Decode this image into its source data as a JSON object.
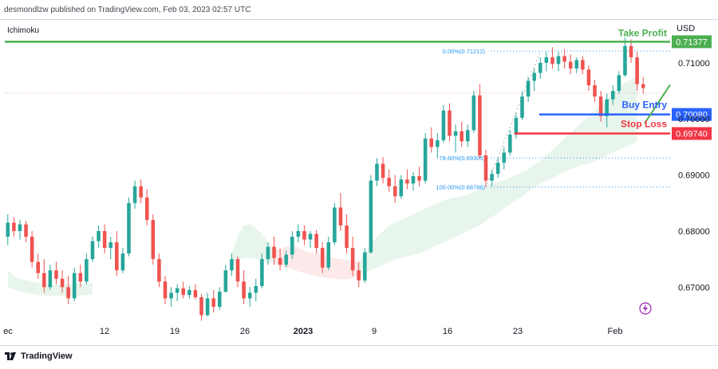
{
  "publisher": "desmondlzw published on TradingView.com, Feb 03, 2023 02:57 UTC",
  "indicator": "Ichimoku",
  "currency": "USD",
  "footer": "TradingView",
  "colors": {
    "up": "#26a69a",
    "down": "#ef5350",
    "take_profit": "#4caf50",
    "buy_entry": "#2962ff",
    "stop_loss": "#f23645",
    "fib": "#2196f3",
    "cloud_green": "#e6f4ea",
    "cloud_red": "#fde7e7",
    "signal": "#9c27b0"
  },
  "annotations": {
    "take_profit": "Take Profit",
    "buy_entry": "Buy Entry",
    "stop_loss": "Stop Loss"
  },
  "price_tags": {
    "take_profit": "0.71377",
    "buy_entry": "0.70080",
    "stop_loss": "0.69740"
  },
  "chart_data": {
    "type": "candlestick",
    "x_ticks": [
      "ec",
      "12",
      "19",
      "26",
      "2023",
      "9",
      "16",
      "23",
      "Feb"
    ],
    "y_ticks": [
      "0.71000",
      "0.70000",
      "0.69000",
      "0.68000",
      "0.67000"
    ],
    "ylim": [
      0.6645,
      0.7178
    ],
    "levels": {
      "take_profit": 0.71377,
      "buy_entry": 0.7008,
      "stop_loss": 0.6974
    },
    "fibonacci": [
      {
        "label": "0.00%(0.71212)",
        "value": 0.71212
      },
      {
        "label": "78.60%(0.69305)",
        "value": 0.69305
      },
      {
        "label": "100.00%(0.68786)",
        "value": 0.68786
      }
    ],
    "candles": [
      [
        0.679,
        0.683,
        0.6775,
        0.6815
      ],
      [
        0.6815,
        0.6825,
        0.679,
        0.68
      ],
      [
        0.68,
        0.682,
        0.6785,
        0.6812
      ],
      [
        0.6812,
        0.6818,
        0.678,
        0.679
      ],
      [
        0.679,
        0.68,
        0.6735,
        0.6745
      ],
      [
        0.6745,
        0.676,
        0.6715,
        0.6725
      ],
      [
        0.6725,
        0.675,
        0.669,
        0.67
      ],
      [
        0.67,
        0.674,
        0.6695,
        0.673
      ],
      [
        0.673,
        0.6745,
        0.6705,
        0.6715
      ],
      [
        0.6715,
        0.673,
        0.669,
        0.67
      ],
      [
        0.67,
        0.672,
        0.667,
        0.668
      ],
      [
        0.668,
        0.6735,
        0.6675,
        0.6725
      ],
      [
        0.6725,
        0.674,
        0.67,
        0.671
      ],
      [
        0.671,
        0.676,
        0.6705,
        0.675
      ],
      [
        0.675,
        0.679,
        0.6745,
        0.6782
      ],
      [
        0.6782,
        0.681,
        0.677,
        0.68
      ],
      [
        0.68,
        0.6812,
        0.676,
        0.677
      ],
      [
        0.677,
        0.679,
        0.675,
        0.678
      ],
      [
        0.678,
        0.68,
        0.672,
        0.673
      ],
      [
        0.673,
        0.677,
        0.6725,
        0.676
      ],
      [
        0.676,
        0.686,
        0.6755,
        0.685
      ],
      [
        0.685,
        0.689,
        0.684,
        0.688
      ],
      [
        0.688,
        0.6892,
        0.685,
        0.686
      ],
      [
        0.686,
        0.6875,
        0.681,
        0.682
      ],
      [
        0.682,
        0.683,
        0.674,
        0.675
      ],
      [
        0.675,
        0.676,
        0.67,
        0.671
      ],
      [
        0.671,
        0.672,
        0.667,
        0.668
      ],
      [
        0.668,
        0.67,
        0.6665,
        0.669
      ],
      [
        0.669,
        0.6705,
        0.6675,
        0.6698
      ],
      [
        0.6698,
        0.671,
        0.668,
        0.6686
      ],
      [
        0.6686,
        0.6702,
        0.668,
        0.6695
      ],
      [
        0.6695,
        0.6705,
        0.6678,
        0.6682
      ],
      [
        0.6682,
        0.6688,
        0.664,
        0.665
      ],
      [
        0.665,
        0.669,
        0.6648,
        0.668
      ],
      [
        0.668,
        0.6695,
        0.6655,
        0.6665
      ],
      [
        0.6665,
        0.67,
        0.666,
        0.6692
      ],
      [
        0.6692,
        0.674,
        0.669,
        0.673
      ],
      [
        0.673,
        0.676,
        0.672,
        0.675
      ],
      [
        0.675,
        0.6755,
        0.67,
        0.671
      ],
      [
        0.671,
        0.673,
        0.667,
        0.668
      ],
      [
        0.668,
        0.67,
        0.6665,
        0.669
      ],
      [
        0.669,
        0.6715,
        0.6675,
        0.6702
      ],
      [
        0.6702,
        0.676,
        0.6698,
        0.675
      ],
      [
        0.675,
        0.678,
        0.674,
        0.6772
      ],
      [
        0.6772,
        0.679,
        0.674,
        0.6752
      ],
      [
        0.6752,
        0.6768,
        0.673,
        0.674
      ],
      [
        0.674,
        0.6765,
        0.6735,
        0.6758
      ],
      [
        0.6758,
        0.68,
        0.675,
        0.679
      ],
      [
        0.679,
        0.6812,
        0.678,
        0.68
      ],
      [
        0.68,
        0.681,
        0.6775,
        0.6785
      ],
      [
        0.6785,
        0.68,
        0.677,
        0.6795
      ],
      [
        0.6795,
        0.6802,
        0.676,
        0.677
      ],
      [
        0.677,
        0.678,
        0.6725,
        0.6735
      ],
      [
        0.6735,
        0.679,
        0.673,
        0.678
      ],
      [
        0.678,
        0.685,
        0.6775,
        0.6842
      ],
      [
        0.6842,
        0.6868,
        0.68,
        0.681
      ],
      [
        0.681,
        0.683,
        0.676,
        0.677
      ],
      [
        0.677,
        0.679,
        0.672,
        0.673
      ],
      [
        0.673,
        0.6745,
        0.67,
        0.6712
      ],
      [
        0.6712,
        0.677,
        0.6708,
        0.6762
      ],
      [
        0.6762,
        0.69,
        0.676,
        0.689
      ],
      [
        0.689,
        0.693,
        0.688,
        0.692
      ],
      [
        0.692,
        0.6932,
        0.6885,
        0.6895
      ],
      [
        0.6895,
        0.691,
        0.687,
        0.688
      ],
      [
        0.688,
        0.69,
        0.685,
        0.6862
      ],
      [
        0.6862,
        0.69,
        0.6858,
        0.6892
      ],
      [
        0.6892,
        0.691,
        0.6875,
        0.6885
      ],
      [
        0.6885,
        0.6905,
        0.6872,
        0.6898
      ],
      [
        0.6898,
        0.6915,
        0.688,
        0.689
      ],
      [
        0.689,
        0.6975,
        0.6885,
        0.6965
      ],
      [
        0.6965,
        0.6985,
        0.694,
        0.695
      ],
      [
        0.695,
        0.6975,
        0.693,
        0.6962
      ],
      [
        0.6962,
        0.7025,
        0.6958,
        0.7015
      ],
      [
        0.7015,
        0.7028,
        0.696,
        0.697
      ],
      [
        0.697,
        0.699,
        0.694,
        0.6978
      ],
      [
        0.6978,
        0.6995,
        0.695,
        0.696
      ],
      [
        0.696,
        0.699,
        0.695,
        0.698
      ],
      [
        0.698,
        0.705,
        0.6975,
        0.7042
      ],
      [
        0.7042,
        0.7062,
        0.693,
        0.6935
      ],
      [
        0.6935,
        0.6945,
        0.6878,
        0.689
      ],
      [
        0.689,
        0.691,
        0.688,
        0.6902
      ],
      [
        0.6902,
        0.693,
        0.6895,
        0.6922
      ],
      [
        0.6922,
        0.695,
        0.691,
        0.694
      ],
      [
        0.694,
        0.698,
        0.6935,
        0.6972
      ],
      [
        0.6972,
        0.701,
        0.6965,
        0.7002
      ],
      [
        0.7002,
        0.705,
        0.6998,
        0.704
      ],
      [
        0.704,
        0.7075,
        0.703,
        0.7068
      ],
      [
        0.7068,
        0.709,
        0.705,
        0.7082
      ],
      [
        0.7082,
        0.711,
        0.7072,
        0.71
      ],
      [
        0.71,
        0.712,
        0.7085,
        0.711
      ],
      [
        0.711,
        0.7128,
        0.709,
        0.7098
      ],
      [
        0.7098,
        0.712,
        0.7085,
        0.7112
      ],
      [
        0.7112,
        0.7125,
        0.709,
        0.7102
      ],
      [
        0.7102,
        0.7115,
        0.708,
        0.709
      ],
      [
        0.709,
        0.711,
        0.7082,
        0.7105
      ],
      [
        0.7105,
        0.7112,
        0.708,
        0.7088
      ],
      [
        0.7088,
        0.7095,
        0.705,
        0.706
      ],
      [
        0.706,
        0.707,
        0.703,
        0.704
      ],
      [
        0.704,
        0.705,
        0.6995,
        0.7005
      ],
      [
        0.7005,
        0.7045,
        0.6985,
        0.7035
      ],
      [
        0.7035,
        0.706,
        0.7025,
        0.705
      ],
      [
        0.705,
        0.7085,
        0.7045,
        0.7078
      ],
      [
        0.7078,
        0.7145,
        0.7075,
        0.713
      ],
      [
        0.713,
        0.7142,
        0.71,
        0.711
      ],
      [
        0.711,
        0.712,
        0.705,
        0.7062
      ],
      [
        0.7062,
        0.7075,
        0.7045,
        0.7055
      ]
    ],
    "cloud": [
      {
        "start": 0,
        "end": 14,
        "color": "green",
        "top": [
          0.673,
          0.672,
          0.6715,
          0.6712,
          0.671,
          0.6708,
          0.6706,
          0.6704,
          0.6704,
          0.6704,
          0.6705,
          0.6706,
          0.6706,
          0.6706,
          0.6708
        ],
        "bottom": [
          0.67,
          0.6696,
          0.6692,
          0.669,
          0.6688,
          0.6686,
          0.6685,
          0.6684,
          0.6684,
          0.6684,
          0.6684,
          0.6684,
          0.6685,
          0.6686,
          0.6688
        ]
      },
      {
        "start": 37,
        "end": 44,
        "color": "green",
        "top": [
          0.676,
          0.679,
          0.681,
          0.6812,
          0.6805,
          0.6795,
          0.678,
          0.6765
        ],
        "bottom": [
          0.674,
          0.6748,
          0.6752,
          0.6752,
          0.675,
          0.6748,
          0.6745,
          0.6742
        ]
      },
      {
        "start": 44,
        "end": 58,
        "color": "red",
        "top": [
          0.6765,
          0.677,
          0.6772,
          0.6775,
          0.677,
          0.6765,
          0.6762,
          0.676,
          0.6758,
          0.6755,
          0.6752,
          0.675,
          0.6748,
          0.6746,
          0.6745
        ],
        "bottom": [
          0.6742,
          0.6738,
          0.6735,
          0.6732,
          0.6728,
          0.6725,
          0.6722,
          0.672,
          0.6718,
          0.6716,
          0.6715,
          0.6714,
          0.6714,
          0.6716,
          0.672
        ]
      },
      {
        "start": 58,
        "end": 104,
        "color": "green",
        "top": [
          0.6745,
          0.676,
          0.6775,
          0.679,
          0.68,
          0.681,
          0.6815,
          0.682,
          0.6825,
          0.683,
          0.6835,
          0.684,
          0.6845,
          0.685,
          0.6855,
          0.6858,
          0.686,
          0.6862,
          0.6865,
          0.687,
          0.6875,
          0.688,
          0.6885,
          0.6888,
          0.689,
          0.6895,
          0.69,
          0.6905,
          0.691,
          0.6918,
          0.6925,
          0.6935,
          0.6945,
          0.6955,
          0.6965,
          0.6975,
          0.6985,
          0.6995,
          0.7005,
          0.7015,
          0.7025,
          0.7035,
          0.7045,
          0.7055,
          0.7065,
          0.707,
          0.7075
        ],
        "bottom": [
          0.672,
          0.6725,
          0.673,
          0.6735,
          0.674,
          0.6745,
          0.675,
          0.6752,
          0.6755,
          0.6758,
          0.676,
          0.6765,
          0.677,
          0.6775,
          0.678,
          0.6785,
          0.679,
          0.6795,
          0.68,
          0.6805,
          0.681,
          0.6818,
          0.6825,
          0.6832,
          0.684,
          0.6848,
          0.6855,
          0.6862,
          0.687,
          0.6878,
          0.6885,
          0.689,
          0.6895,
          0.69,
          0.6905,
          0.691,
          0.6915,
          0.6918,
          0.692,
          0.6925,
          0.693,
          0.6935,
          0.694,
          0.6945,
          0.695,
          0.6955,
          0.696
        ]
      }
    ]
  }
}
